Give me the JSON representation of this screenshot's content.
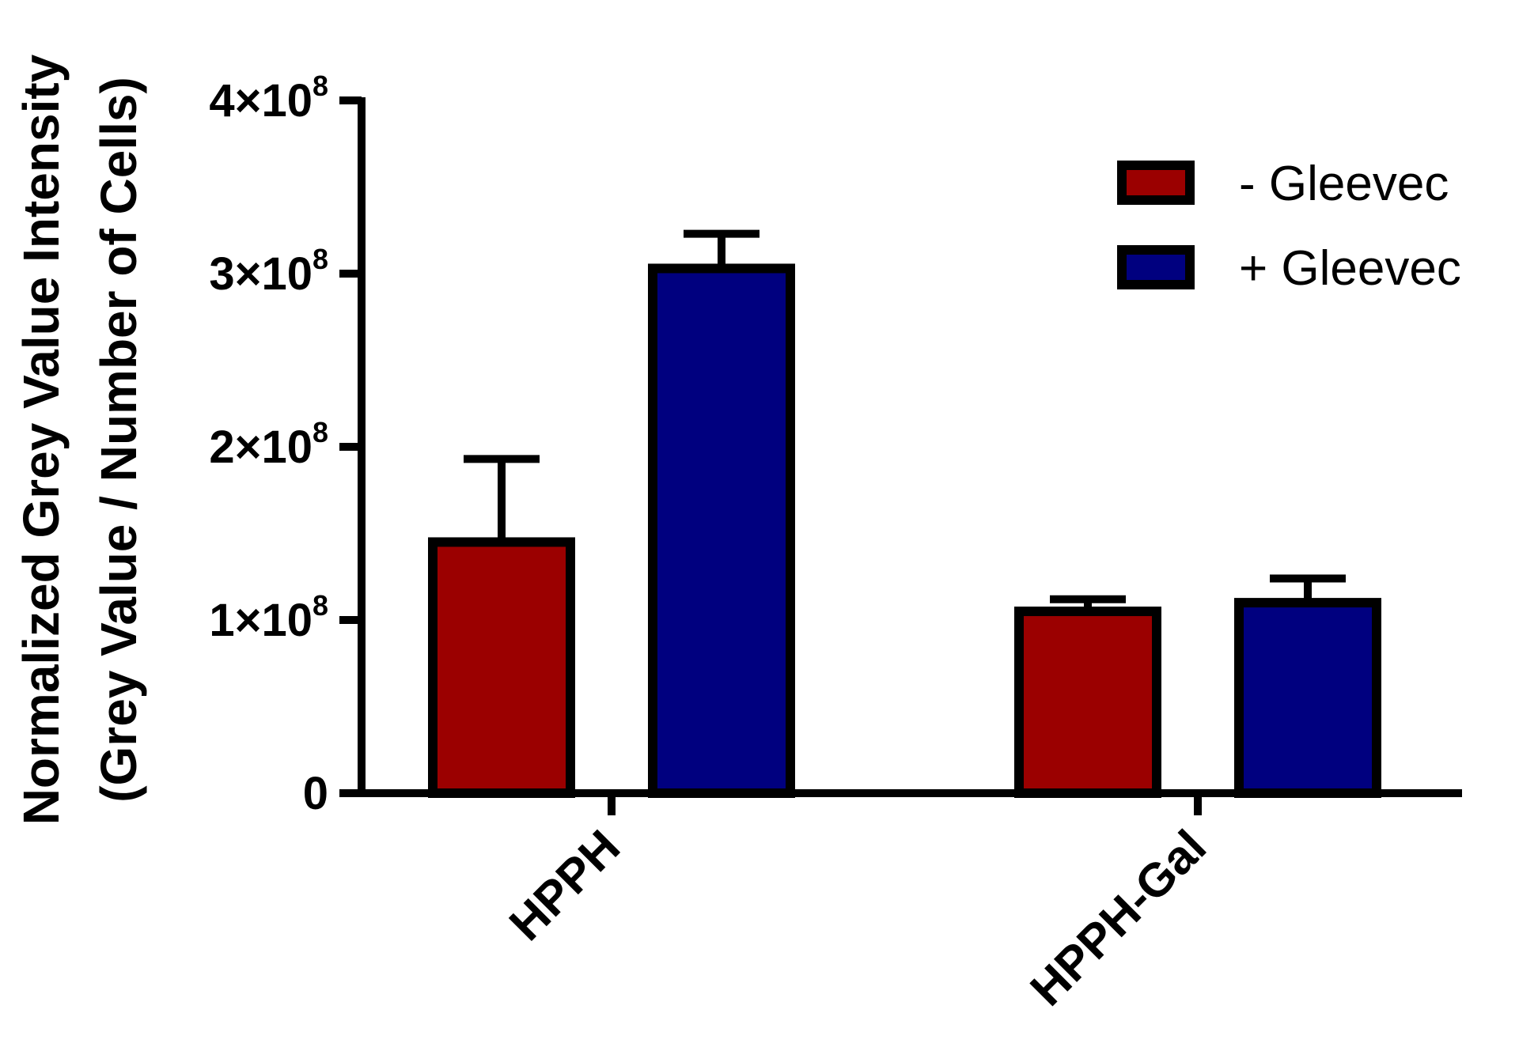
{
  "chart_data": {
    "type": "bar",
    "categories": [
      "HPPH",
      "HPPH-Gal"
    ],
    "series": [
      {
        "name": "- Gleevec",
        "color": "#9b0000",
        "values": [
          145000000,
          105000000
        ],
        "errors": [
          48000000,
          7000000
        ]
      },
      {
        "name": "+ Gleevec",
        "color": "#00007f",
        "values": [
          303000000,
          110000000
        ],
        "errors": [
          20000000,
          14000000
        ]
      }
    ],
    "ylabel_lines": [
      "Normalized Grey Value Intensity",
      "(Grey Value / Number of Cells)"
    ],
    "xlabel": "",
    "ylim": [
      0,
      400000000
    ],
    "y_ticks": [
      {
        "value": 0,
        "base": "0",
        "exp": ""
      },
      {
        "value": 100000000,
        "base": "1×10",
        "exp": "8"
      },
      {
        "value": 200000000,
        "base": "2×10",
        "exp": "8"
      },
      {
        "value": 300000000,
        "base": "3×10",
        "exp": "8"
      },
      {
        "value": 400000000,
        "base": "4×10",
        "exp": "8"
      }
    ],
    "grid": false,
    "legend_position": "top-right",
    "category_label_rotation": "-45deg"
  }
}
